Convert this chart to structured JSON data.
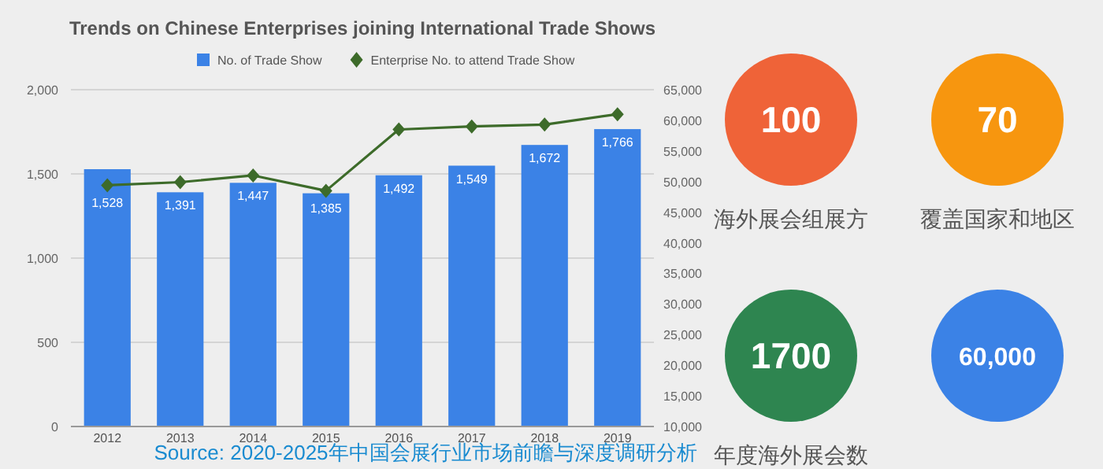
{
  "chart_data": [
    {
      "type": "bar",
      "title": "Trends on Chinese Enterprises joining International Trade Shows",
      "categories": [
        "2012",
        "2013",
        "2014",
        "2015",
        "2016",
        "2017",
        "2018",
        "2019"
      ],
      "series": [
        {
          "name": "No. of Trade Show",
          "type": "bar",
          "color": "#3b82e6",
          "values": [
            1528,
            1391,
            1447,
            1385,
            1492,
            1549,
            1672,
            1766
          ],
          "value_labels": [
            "1,528",
            "1,391",
            "1,447",
            "1,385",
            "1,492",
            "1,549",
            "1,672",
            "1,766"
          ]
        },
        {
          "name": "Enterprise No. to attend Trade Show",
          "type": "line",
          "axis": "y2",
          "color": "#3d6b2a",
          "marker": "diamond",
          "values": [
            49400,
            49900,
            51000,
            48500,
            58500,
            59000,
            59300,
            61000
          ]
        }
      ],
      "ylim": [
        0,
        2000
      ],
      "yticks": [
        {
          "value": 0,
          "label": "0"
        },
        {
          "value": 500,
          "label": "500"
        },
        {
          "value": 1000,
          "label": "1,000"
        },
        {
          "value": 1500,
          "label": "1,500"
        },
        {
          "value": 2000,
          "label": "2,000"
        }
      ],
      "y2lim": [
        10000,
        65000
      ],
      "y2ticks": [
        {
          "value": 10000,
          "label": "10,000"
        },
        {
          "value": 15000,
          "label": "15,000"
        },
        {
          "value": 20000,
          "label": "20,000"
        },
        {
          "value": 25000,
          "label": "25,000"
        },
        {
          "value": 30000,
          "label": "30,000"
        },
        {
          "value": 35000,
          "label": "35,000"
        },
        {
          "value": 40000,
          "label": "40,000"
        },
        {
          "value": 45000,
          "label": "45,000"
        },
        {
          "value": 50000,
          "label": "50,000"
        },
        {
          "value": 55000,
          "label": "55,000"
        },
        {
          "value": 60000,
          "label": "60,000"
        },
        {
          "value": 65000,
          "label": "65,000"
        }
      ],
      "grid": "y",
      "legend": "top",
      "annotations": [
        "Source: 2020-2025年中国会展行业市场前瞻与深度调研分析"
      ]
    },
    {
      "type": "other",
      "annotations": [
        "100",
        "海外展会组展方",
        "70",
        "覆盖国家和地区",
        "1700",
        "年度海外展会数",
        "60,000"
      ],
      "colors": [
        "#ef6338",
        "#f7960f",
        "#2e8550",
        "#3b82e6"
      ]
    }
  ]
}
